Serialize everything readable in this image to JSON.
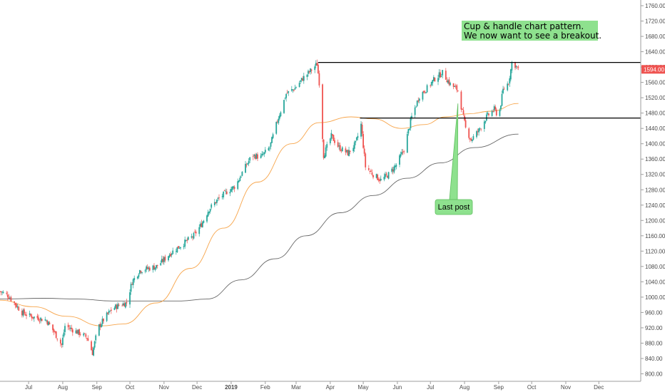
{
  "chart_data": {
    "type": "candlestick",
    "y_scale": {
      "min": 800,
      "max": 1760,
      "ticks": [
        800,
        840,
        880,
        920,
        960,
        1000,
        1040,
        1080,
        1120,
        1160,
        1200,
        1240,
        1280,
        1320,
        1360,
        1400,
        1440,
        1480,
        1520,
        1560,
        1600,
        1640,
        1680,
        1720,
        1760
      ]
    },
    "y_tick_labels": [
      "800.00",
      "840.00",
      "880.00",
      "920.00",
      "960.00",
      "1000.00",
      "1040.00",
      "1080.00",
      "1120.00",
      "1160.00",
      "1200.00",
      "1240.00",
      "1280.00",
      "1320.00",
      "1360.00",
      "1400.00",
      "1440.00",
      "1480.00",
      "1520.00",
      "1560.00",
      "1600.00",
      "1640.00",
      "1680.00",
      "1720.00",
      "1760.00"
    ],
    "x_axis": {
      "start": "2018-06-05",
      "end": "2019-12-30",
      "labels": [
        {
          "date": "2018-07-01",
          "text": "Jul"
        },
        {
          "date": "2018-08-01",
          "text": "Aug"
        },
        {
          "date": "2018-09-01",
          "text": "Sep"
        },
        {
          "date": "2018-10-01",
          "text": "Oct"
        },
        {
          "date": "2018-11-01",
          "text": "Nov"
        },
        {
          "date": "2018-12-01",
          "text": "Dec"
        },
        {
          "date": "2019-01-01",
          "text": "2019",
          "bold": true
        },
        {
          "date": "2019-02-01",
          "text": "Feb"
        },
        {
          "date": "2019-03-01",
          "text": "Mar"
        },
        {
          "date": "2019-04-01",
          "text": "Apr"
        },
        {
          "date": "2019-05-01",
          "text": "May"
        },
        {
          "date": "2019-06-01",
          "text": "Jun"
        },
        {
          "date": "2019-07-01",
          "text": "Jul"
        },
        {
          "date": "2019-08-01",
          "text": "Aug"
        },
        {
          "date": "2019-09-01",
          "text": "Sep"
        },
        {
          "date": "2019-10-01",
          "text": "Oct"
        },
        {
          "date": "2019-11-01",
          "text": "Nov"
        },
        {
          "date": "2019-12-01",
          "text": "Dec"
        }
      ]
    },
    "price_path": [
      [
        "2018-06-05",
        1015
      ],
      [
        "2018-06-12",
        1005
      ],
      [
        "2018-06-18",
        985
      ],
      [
        "2018-06-25",
        960
      ],
      [
        "2018-07-03",
        950
      ],
      [
        "2018-07-10",
        945
      ],
      [
        "2018-07-17",
        940
      ],
      [
        "2018-07-24",
        910
      ],
      [
        "2018-07-31",
        875
      ],
      [
        "2018-08-03",
        925
      ],
      [
        "2018-08-10",
        915
      ],
      [
        "2018-08-17",
        905
      ],
      [
        "2018-08-23",
        895
      ],
      [
        "2018-08-28",
        855
      ],
      [
        "2018-09-02",
        920
      ],
      [
        "2018-09-08",
        945
      ],
      [
        "2018-09-15",
        970
      ],
      [
        "2018-09-22",
        980
      ],
      [
        "2018-09-28",
        985
      ],
      [
        "2018-10-03",
        1040
      ],
      [
        "2018-10-10",
        1070
      ],
      [
        "2018-10-18",
        1075
      ],
      [
        "2018-10-25",
        1080
      ],
      [
        "2018-10-31",
        1095
      ],
      [
        "2018-11-07",
        1115
      ],
      [
        "2018-11-14",
        1130
      ],
      [
        "2018-11-21",
        1145
      ],
      [
        "2018-11-28",
        1160
      ],
      [
        "2018-12-05",
        1190
      ],
      [
        "2018-12-12",
        1230
      ],
      [
        "2018-12-20",
        1255
      ],
      [
        "2018-12-28",
        1275
      ],
      [
        "2019-01-05",
        1290
      ],
      [
        "2019-01-12",
        1330
      ],
      [
        "2019-01-20",
        1370
      ],
      [
        "2019-01-28",
        1365
      ],
      [
        "2019-02-05",
        1390
      ],
      [
        "2019-02-12",
        1460
      ],
      [
        "2019-02-20",
        1530
      ],
      [
        "2019-02-28",
        1545
      ],
      [
        "2019-03-07",
        1570
      ],
      [
        "2019-03-14",
        1590
      ],
      [
        "2019-03-20",
        1608
      ],
      [
        "2019-03-22",
        1560
      ],
      [
        "2019-03-26",
        1370
      ],
      [
        "2019-04-02",
        1420
      ],
      [
        "2019-04-09",
        1390
      ],
      [
        "2019-04-17",
        1375
      ],
      [
        "2019-04-24",
        1400
      ],
      [
        "2019-04-29",
        1450
      ],
      [
        "2019-05-03",
        1340
      ],
      [
        "2019-05-10",
        1320
      ],
      [
        "2019-05-17",
        1305
      ],
      [
        "2019-05-24",
        1320
      ],
      [
        "2019-05-31",
        1345
      ],
      [
        "2019-06-07",
        1385
      ],
      [
        "2019-06-14",
        1470
      ],
      [
        "2019-06-21",
        1525
      ],
      [
        "2019-06-28",
        1545
      ],
      [
        "2019-07-05",
        1570
      ],
      [
        "2019-07-12",
        1585
      ],
      [
        "2019-07-19",
        1555
      ],
      [
        "2019-07-26",
        1540
      ],
      [
        "2019-08-02",
        1440
      ],
      [
        "2019-08-07",
        1410
      ],
      [
        "2019-08-14",
        1435
      ],
      [
        "2019-08-21",
        1470
      ],
      [
        "2019-08-28",
        1490
      ],
      [
        "2019-09-01",
        1470
      ],
      [
        "2019-09-05",
        1540
      ],
      [
        "2019-09-10",
        1560
      ],
      [
        "2019-09-13",
        1610
      ],
      [
        "2019-09-16",
        1605
      ],
      [
        "2019-09-19",
        1594
      ]
    ],
    "ma50_path": [
      [
        "2018-06-05",
        992
      ],
      [
        "2018-07-05",
        975
      ],
      [
        "2018-08-05",
        950
      ],
      [
        "2018-09-05",
        925
      ],
      [
        "2018-09-25",
        930
      ],
      [
        "2018-10-25",
        985
      ],
      [
        "2018-11-25",
        1075
      ],
      [
        "2018-12-25",
        1180
      ],
      [
        "2019-01-25",
        1300
      ],
      [
        "2019-02-25",
        1400
      ],
      [
        "2019-03-22",
        1455
      ],
      [
        "2019-04-20",
        1470
      ],
      [
        "2019-05-10",
        1465
      ],
      [
        "2019-06-05",
        1440
      ],
      [
        "2019-06-25",
        1450
      ],
      [
        "2019-07-15",
        1470
      ],
      [
        "2019-08-05",
        1478
      ],
      [
        "2019-08-25",
        1485
      ],
      [
        "2019-09-19",
        1505
      ]
    ],
    "ma200_path": [
      [
        "2018-06-05",
        995
      ],
      [
        "2018-07-15",
        997
      ],
      [
        "2018-08-15",
        995
      ],
      [
        "2018-09-15",
        990
      ],
      [
        "2018-10-15",
        990
      ],
      [
        "2018-11-15",
        990
      ],
      [
        "2018-12-10",
        995
      ],
      [
        "2019-01-10",
        1045
      ],
      [
        "2019-02-10",
        1100
      ],
      [
        "2019-03-10",
        1160
      ],
      [
        "2019-04-10",
        1220
      ],
      [
        "2019-05-10",
        1265
      ],
      [
        "2019-06-10",
        1310
      ],
      [
        "2019-07-10",
        1350
      ],
      [
        "2019-08-10",
        1390
      ],
      [
        "2019-09-19",
        1425
      ]
    ],
    "resistance_line": {
      "value": 1612,
      "from": "2019-03-21",
      "to": "2019-12-30"
    },
    "support_line": {
      "value": 1467,
      "from": "2019-04-28",
      "to": "2019-12-30"
    },
    "current_price": {
      "value": 1594,
      "label": "1594.00"
    },
    "annotations": {
      "headline": {
        "lines": [
          "Cup & handle chart pattern.",
          "We now want to see a breakout."
        ]
      },
      "callout": {
        "text": "Last post",
        "target_date": "2019-07-26",
        "target_value": 1505
      }
    },
    "colors": {
      "up": "#26a69a",
      "down": "#ef5350",
      "ma50": "#f7a54b",
      "ma200": "#666666",
      "line": "#000000",
      "note_bg": "#8ee18e",
      "price_tag": "#ef5350"
    }
  }
}
